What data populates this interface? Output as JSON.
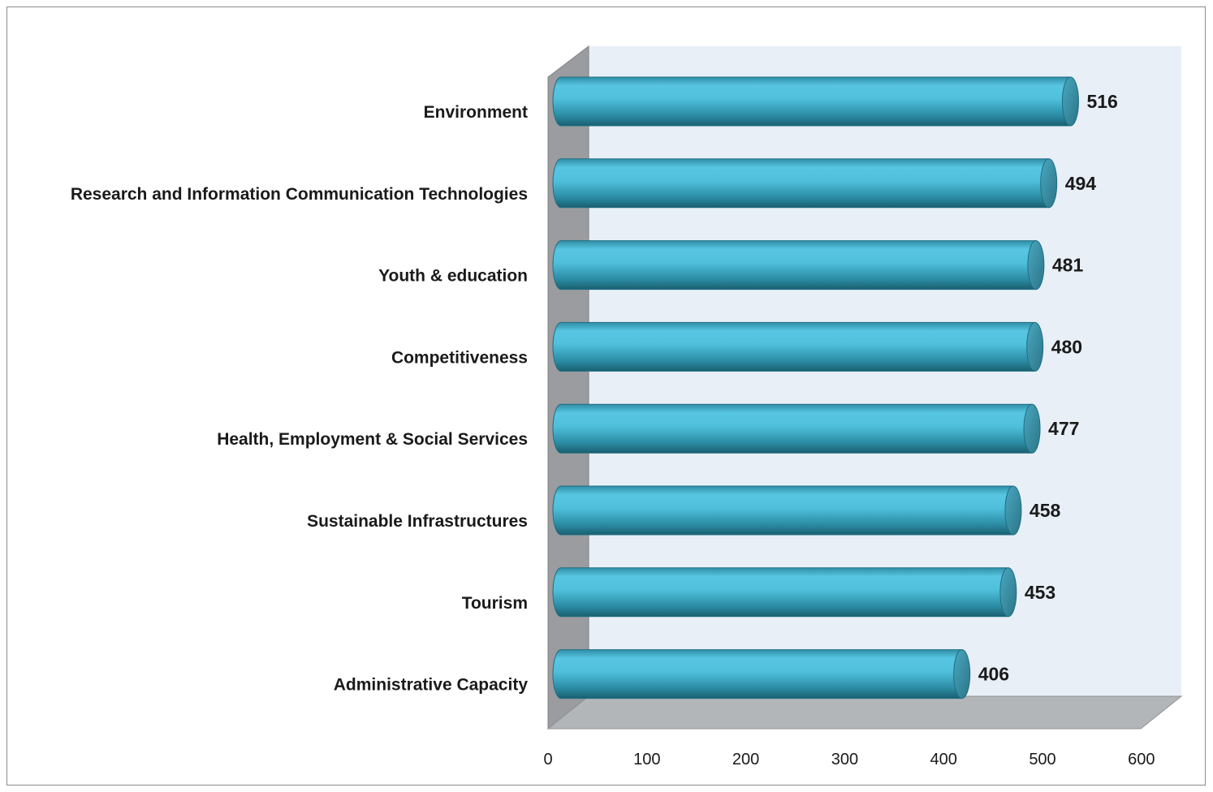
{
  "chart_data": {
    "type": "bar",
    "orientation": "horizontal",
    "style": "3d-cylinder",
    "title": "",
    "xlabel": "",
    "ylabel": "",
    "categories": [
      "Environment",
      "Research and Information Communication Technologies",
      "Youth & education",
      "Competitiveness",
      "Health, Employment & Social Services",
      "Sustainable Infrastructures",
      "Tourism",
      "Administrative Capacity"
    ],
    "values": [
      516,
      494,
      481,
      480,
      477,
      458,
      453,
      406
    ],
    "value_labels": [
      "516",
      "494",
      "481",
      "480",
      "477",
      "458",
      "453",
      "406"
    ],
    "xlim": [
      0,
      600
    ],
    "xticks": [
      "0",
      "100",
      "200",
      "300",
      "400",
      "500",
      "600"
    ],
    "legend": "none",
    "grid": false,
    "colors": {
      "bar": "#4bbcd8",
      "bar_dark": "#1e6e82",
      "bar_cap": "#3a8fa5",
      "back_wall": "#e8eff7",
      "side_wall": "#9b9da0",
      "floor": "#b0b3b6"
    }
  }
}
